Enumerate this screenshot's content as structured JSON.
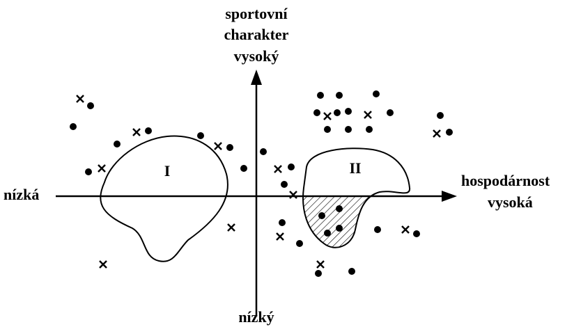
{
  "axes": {
    "y_top": [
      "sportovní",
      "charakter",
      "vysoký"
    ],
    "y_bottom": "nízký",
    "x_left": "nízká",
    "x_right": [
      "hospodárnost",
      "vysoká"
    ]
  },
  "regions": [
    "I",
    "II"
  ]
}
